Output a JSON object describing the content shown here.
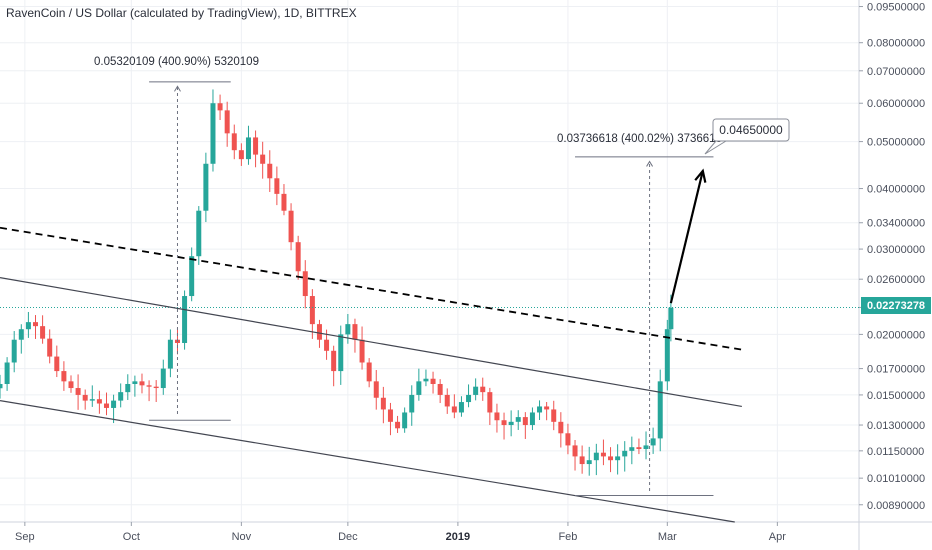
{
  "chart_data": {
    "type": "candlestick",
    "title": "RavenCoin / US Dollar (calculated by TradingView), 1D, BITTREX",
    "y_scale": "log",
    "y_tick_labels": [
      "0.09500000",
      "0.08000000",
      "0.07000000",
      "0.06000000",
      "0.05000000",
      "0.04000000",
      "0.03400000",
      "0.03000000",
      "0.02600000",
      "0.02273278",
      "0.02000000",
      "0.01700000",
      "0.01500000",
      "0.01300000",
      "0.01150000",
      "0.01010000",
      "0.00890000"
    ],
    "x_tick_labels": [
      "Sep",
      "Oct",
      "Nov",
      "Dec",
      "2019",
      "Feb",
      "Mar",
      "Apr"
    ],
    "x_range": [
      "2018-08-25",
      "2019-04-24"
    ],
    "y_range": [
      0.0082,
      0.098
    ],
    "last_price": "0.02273278",
    "candles_close_approx": [
      [
        "2018-08-25",
        0.0158
      ],
      [
        "2018-08-27",
        0.0175
      ],
      [
        "2018-08-29",
        0.0195
      ],
      [
        "2018-08-31",
        0.0205
      ],
      [
        "2018-09-02",
        0.0212
      ],
      [
        "2018-09-04",
        0.0208
      ],
      [
        "2018-09-06",
        0.0196
      ],
      [
        "2018-09-08",
        0.018
      ],
      [
        "2018-09-10",
        0.0168
      ],
      [
        "2018-09-12",
        0.016
      ],
      [
        "2018-09-14",
        0.0155
      ],
      [
        "2018-09-16",
        0.015
      ],
      [
        "2018-09-18",
        0.0146
      ],
      [
        "2018-09-20",
        0.0147
      ],
      [
        "2018-09-22",
        0.0144
      ],
      [
        "2018-09-24",
        0.0141
      ],
      [
        "2018-09-26",
        0.0146
      ],
      [
        "2018-09-28",
        0.0152
      ],
      [
        "2018-09-30",
        0.0158
      ],
      [
        "2018-10-02",
        0.016
      ],
      [
        "2018-10-04",
        0.0157
      ],
      [
        "2018-10-06",
        0.0156
      ],
      [
        "2018-10-08",
        0.0155
      ],
      [
        "2018-10-10",
        0.017
      ],
      [
        "2018-10-12",
        0.0195
      ],
      [
        "2018-10-14",
        0.0192
      ],
      [
        "2018-10-16",
        0.024
      ],
      [
        "2018-10-18",
        0.029
      ],
      [
        "2018-10-20",
        0.036
      ],
      [
        "2018-10-22",
        0.045
      ],
      [
        "2018-10-24",
        0.06
      ],
      [
        "2018-10-26",
        0.058
      ],
      [
        "2018-10-28",
        0.052
      ],
      [
        "2018-10-30",
        0.048
      ],
      [
        "2018-11-01",
        0.046
      ],
      [
        "2018-11-03",
        0.051
      ],
      [
        "2018-11-05",
        0.047
      ],
      [
        "2018-11-07",
        0.045
      ],
      [
        "2018-11-09",
        0.042
      ],
      [
        "2018-11-11",
        0.039
      ],
      [
        "2018-11-13",
        0.036
      ],
      [
        "2018-11-15",
        0.031
      ],
      [
        "2018-11-17",
        0.027
      ],
      [
        "2018-11-19",
        0.024
      ],
      [
        "2018-11-21",
        0.021
      ],
      [
        "2018-11-23",
        0.0195
      ],
      [
        "2018-11-25",
        0.0185
      ],
      [
        "2018-11-27",
        0.0168
      ],
      [
        "2018-11-29",
        0.02
      ],
      [
        "2018-12-01",
        0.021
      ],
      [
        "2018-12-03",
        0.0195
      ],
      [
        "2018-12-05",
        0.0175
      ],
      [
        "2018-12-07",
        0.016
      ],
      [
        "2018-12-09",
        0.0148
      ],
      [
        "2018-12-11",
        0.014
      ],
      [
        "2018-12-13",
        0.0132
      ],
      [
        "2018-12-15",
        0.0128
      ],
      [
        "2018-12-17",
        0.0138
      ],
      [
        "2018-12-19",
        0.015
      ],
      [
        "2018-12-21",
        0.016
      ],
      [
        "2018-12-23",
        0.0162
      ],
      [
        "2018-12-25",
        0.0158
      ],
      [
        "2018-12-27",
        0.015
      ],
      [
        "2018-12-29",
        0.0142
      ],
      [
        "2018-12-31",
        0.0138
      ],
      [
        "2019-01-02",
        0.0145
      ],
      [
        "2019-01-04",
        0.015
      ],
      [
        "2019-01-06",
        0.0156
      ],
      [
        "2019-01-08",
        0.0152
      ],
      [
        "2019-01-10",
        0.0138
      ],
      [
        "2019-01-12",
        0.0133
      ],
      [
        "2019-01-14",
        0.013
      ],
      [
        "2019-01-16",
        0.0132
      ],
      [
        "2019-01-18",
        0.0135
      ],
      [
        "2019-01-20",
        0.013
      ],
      [
        "2019-01-22",
        0.0138
      ],
      [
        "2019-01-24",
        0.0142
      ],
      [
        "2019-01-26",
        0.014
      ],
      [
        "2019-01-28",
        0.0132
      ],
      [
        "2019-01-30",
        0.0125
      ],
      [
        "2019-02-01",
        0.0118
      ],
      [
        "2019-02-03",
        0.0112
      ],
      [
        "2019-02-05",
        0.0108
      ],
      [
        "2019-02-07",
        0.011
      ],
      [
        "2019-02-09",
        0.0114
      ],
      [
        "2019-02-11",
        0.0112
      ],
      [
        "2019-02-13",
        0.011
      ],
      [
        "2019-02-15",
        0.0112
      ],
      [
        "2019-02-17",
        0.0115
      ],
      [
        "2019-02-19",
        0.0117
      ],
      [
        "2019-02-21",
        0.0116
      ],
      [
        "2019-02-23",
        0.0118
      ],
      [
        "2019-02-25",
        0.0122
      ],
      [
        "2019-02-27",
        0.016
      ],
      [
        "2019-03-01",
        0.0205
      ],
      [
        "2019-03-02",
        0.0227
      ]
    ]
  },
  "annotations": {
    "measure1": "0.05320109 (400.90%) 5320109",
    "measure2": "0.03736618 (400.02%) 3736618",
    "target_label": "0.04650000"
  },
  "colors": {
    "up": "#26a69a",
    "down": "#ef5350",
    "price_line": "#26a69a",
    "grid": "#eef0f4",
    "trendline": "#000000"
  }
}
